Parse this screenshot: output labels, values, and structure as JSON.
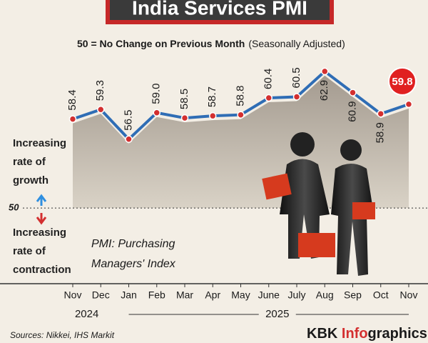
{
  "chart_data": {
    "type": "line",
    "title": "India Services PMI",
    "subtitle": "50 = No Change on Previous Month",
    "subtitle_note": "(Seasonally Adjusted)",
    "categories": [
      "Nov",
      "Dec",
      "Jan",
      "Feb",
      "Mar",
      "Apr",
      "May",
      "June",
      "July",
      "Aug",
      "Sep",
      "Oct",
      "Nov"
    ],
    "series": [
      {
        "name": "India Services PMI",
        "color": "#2f6db5",
        "values": [
          58.4,
          59.3,
          56.5,
          59.0,
          58.5,
          58.7,
          58.8,
          60.4,
          60.5,
          62.9,
          60.9,
          58.9,
          59.8
        ],
        "value_labels": [
          "58.4",
          "59.3",
          "56.5",
          "59.0",
          "58.5",
          "58.7",
          "58.8",
          "60.4",
          "60.5",
          "62.9",
          "60.9",
          "58.9",
          "59.8"
        ]
      }
    ],
    "ylim": [
      44,
      66
    ],
    "yticks": [
      50
    ],
    "year_labels": [
      "2024",
      "2025"
    ],
    "growth_note": [
      "Increasing",
      "rate of",
      "growth"
    ],
    "contraction_note": [
      "Increasing",
      "rate of",
      "contraction"
    ],
    "definition": [
      "PMI: Purchasing",
      "Managers' Index"
    ],
    "source": "Sources: Nikkei, IHS Markit",
    "brand": [
      "KBK ",
      "Info",
      "graphics"
    ]
  }
}
